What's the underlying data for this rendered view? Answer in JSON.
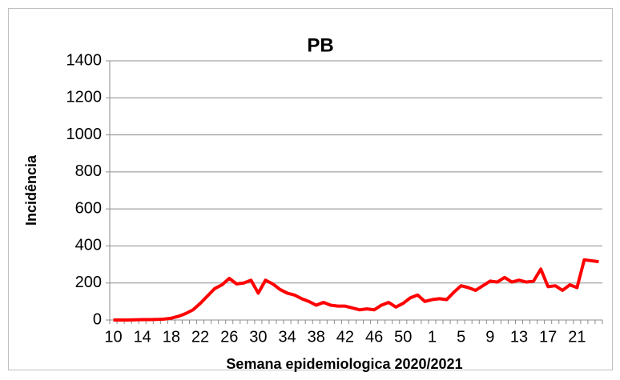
{
  "chart_data": {
    "type": "line",
    "title": "PB",
    "xlabel": "Semana epidemiologica 2020/2021",
    "ylabel": "Incidência",
    "categories": [
      "10",
      null,
      null,
      null,
      "14",
      null,
      null,
      null,
      "18",
      null,
      null,
      null,
      "22",
      null,
      null,
      null,
      "26",
      null,
      null,
      null,
      "30",
      null,
      null,
      null,
      "34",
      null,
      null,
      null,
      "38",
      null,
      null,
      null,
      "42",
      null,
      null,
      null,
      "46",
      null,
      null,
      null,
      "50",
      null,
      null,
      null,
      "1",
      null,
      null,
      null,
      "5",
      null,
      null,
      null,
      "9",
      null,
      null,
      null,
      "13",
      null,
      null,
      null,
      "17",
      null,
      null,
      null,
      "21",
      null,
      null,
      null
    ],
    "values": [
      0,
      0,
      0,
      1,
      2,
      2,
      3,
      5,
      10,
      20,
      35,
      55,
      90,
      130,
      170,
      190,
      225,
      195,
      200,
      215,
      145,
      215,
      195,
      165,
      145,
      135,
      115,
      100,
      80,
      95,
      80,
      75,
      75,
      65,
      55,
      60,
      55,
      80,
      95,
      70,
      90,
      120,
      135,
      100,
      110,
      115,
      110,
      150,
      185,
      175,
      160,
      185,
      210,
      205,
      230,
      205,
      215,
      205,
      210,
      275,
      180,
      185,
      160,
      190,
      175,
      325,
      320,
      315
    ],
    "color": "#ff0000",
    "ylim": [
      0,
      1400
    ],
    "yticks": [
      0,
      200,
      400,
      600,
      800,
      1000,
      1200,
      1400
    ],
    "grid": true
  }
}
